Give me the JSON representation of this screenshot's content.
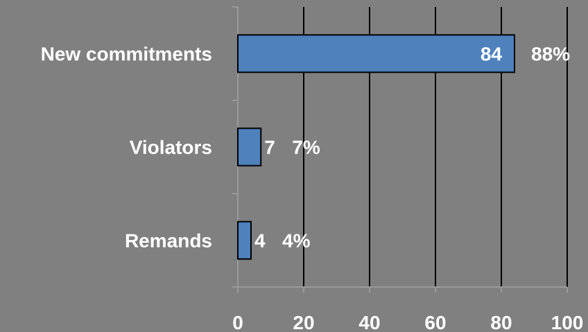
{
  "chart_data": {
    "type": "bar",
    "orientation": "horizontal",
    "categories": [
      "New commitments",
      "Violators",
      "Remands"
    ],
    "values": [
      84,
      7,
      4
    ],
    "percent_labels": [
      "88%",
      "7%",
      "4%"
    ],
    "xlim": [
      0,
      100
    ],
    "xticks": [
      0,
      20,
      40,
      60,
      80,
      100
    ],
    "grid": true,
    "legend": "none",
    "colors": {
      "background": "#808080",
      "bar": "#4f81bd",
      "bar_border": "#000000",
      "text": "#ffffff",
      "gridline": "#000000"
    }
  }
}
